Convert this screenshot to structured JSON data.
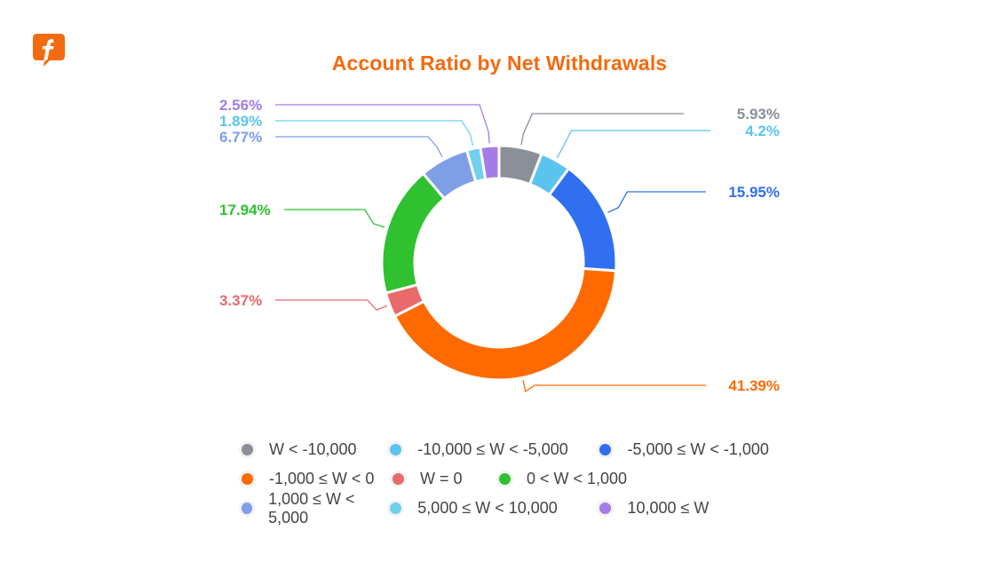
{
  "logo": {
    "icon": "f-logo-icon",
    "color": "#f46a0e"
  },
  "title": "Account Ratio by Net Withdrawals",
  "chart_data": {
    "type": "pie",
    "subtype": "donut",
    "title": "Account Ratio by Net Withdrawals",
    "start_angle": "12 o'clock, clockwise",
    "legend_position": "bottom",
    "categories": [
      "W < -10,000",
      "-10,000 ≤ W < -5,000",
      "-5,000 ≤ W < -1,000",
      "-1,000 ≤ W < 0",
      "W = 0",
      "0 < W < 1,000",
      "1,000 ≤ W < 5,000",
      "5,000 ≤ W < 10,000",
      "10,000 ≤ W"
    ],
    "values": [
      5.93,
      4.2,
      15.95,
      41.39,
      3.37,
      17.94,
      6.77,
      1.89,
      2.56
    ],
    "labels": [
      "5.93%",
      "4.2%",
      "15.95%",
      "41.39%",
      "3.37%",
      "17.94%",
      "6.77%",
      "1.89%",
      "2.56%"
    ],
    "colors": [
      "#8b8f98",
      "#5bc4ee",
      "#2f6ff0",
      "#ff6a00",
      "#e86a6a",
      "#2fc12f",
      "#7f9ee8",
      "#6fd0f0",
      "#a57be8"
    ],
    "unit": "%"
  },
  "legend": {
    "rows": [
      [
        {
          "label": "W < -10,000",
          "color": "#8b8f98"
        },
        {
          "label": "-10,000 ≤ W < -5,000",
          "color": "#5bc4ee"
        },
        {
          "label": "-5,000 ≤ W < -1,000",
          "color": "#2f6ff0"
        }
      ],
      [
        {
          "label": "-1,000 ≤ W < 0",
          "color": "#ff6a00"
        },
        {
          "label": "W = 0",
          "color": "#e86a6a"
        },
        {
          "label": "0 < W < 1,000",
          "color": "#2fc12f"
        }
      ],
      [
        {
          "label": "1,000 ≤ W < 5,000",
          "color": "#7f9ee8"
        },
        {
          "label": "5,000 ≤ W < 10,000",
          "color": "#6fd0f0"
        },
        {
          "label": "10,000 ≤ W",
          "color": "#a57be8"
        }
      ]
    ]
  }
}
